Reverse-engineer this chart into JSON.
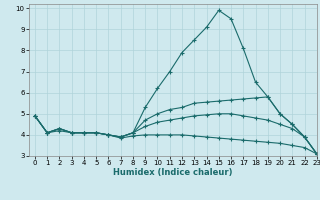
{
  "xlabel": "Humidex (Indice chaleur)",
  "ylabel": "",
  "xlim": [
    -0.5,
    23
  ],
  "ylim": [
    3,
    10.2
  ],
  "yticks": [
    3,
    4,
    5,
    6,
    7,
    8,
    9,
    10
  ],
  "xticks": [
    0,
    1,
    2,
    3,
    4,
    5,
    6,
    7,
    8,
    9,
    10,
    11,
    12,
    13,
    14,
    15,
    16,
    17,
    18,
    19,
    20,
    21,
    22,
    23
  ],
  "bg_color": "#cfe9ee",
  "grid_color": "#b0d4da",
  "line_color": "#1a6b6b",
  "lines": [
    {
      "x": [
        0,
        1,
        2,
        3,
        4,
        5,
        6,
        7,
        8,
        9,
        10,
        11,
        12,
        13,
        14,
        15,
        16,
        17,
        18,
        19,
        20,
        21,
        22,
        23
      ],
      "y": [
        4.9,
        4.1,
        4.3,
        4.1,
        4.1,
        4.1,
        4.0,
        3.9,
        4.1,
        5.3,
        6.2,
        7.0,
        7.9,
        8.5,
        9.1,
        9.9,
        9.5,
        8.1,
        6.5,
        5.8,
        5.0,
        4.5,
        3.9,
        3.1
      ]
    },
    {
      "x": [
        0,
        1,
        2,
        3,
        4,
        5,
        6,
        7,
        8,
        9,
        10,
        11,
        12,
        13,
        14,
        15,
        16,
        17,
        18,
        19,
        20,
        21,
        22,
        23
      ],
      "y": [
        4.9,
        4.1,
        4.3,
        4.1,
        4.1,
        4.1,
        4.0,
        3.9,
        4.1,
        4.7,
        5.0,
        5.2,
        5.3,
        5.5,
        5.55,
        5.6,
        5.65,
        5.7,
        5.75,
        5.8,
        5.0,
        4.5,
        3.9,
        3.1
      ]
    },
    {
      "x": [
        0,
        1,
        2,
        3,
        4,
        5,
        6,
        7,
        8,
        9,
        10,
        11,
        12,
        13,
        14,
        15,
        16,
        17,
        18,
        19,
        20,
        21,
        22,
        23
      ],
      "y": [
        4.9,
        4.1,
        4.3,
        4.1,
        4.1,
        4.1,
        4.0,
        3.9,
        4.1,
        4.4,
        4.6,
        4.7,
        4.8,
        4.9,
        4.95,
        5.0,
        5.0,
        4.9,
        4.8,
        4.7,
        4.5,
        4.3,
        3.9,
        3.1
      ]
    },
    {
      "x": [
        0,
        1,
        2,
        3,
        4,
        5,
        6,
        7,
        8,
        9,
        10,
        11,
        12,
        13,
        14,
        15,
        16,
        17,
        18,
        19,
        20,
        21,
        22,
        23
      ],
      "y": [
        4.9,
        4.1,
        4.2,
        4.1,
        4.1,
        4.1,
        4.0,
        3.85,
        3.95,
        4.0,
        4.0,
        4.0,
        4.0,
        3.95,
        3.9,
        3.85,
        3.8,
        3.75,
        3.7,
        3.65,
        3.6,
        3.5,
        3.4,
        3.1
      ]
    }
  ]
}
